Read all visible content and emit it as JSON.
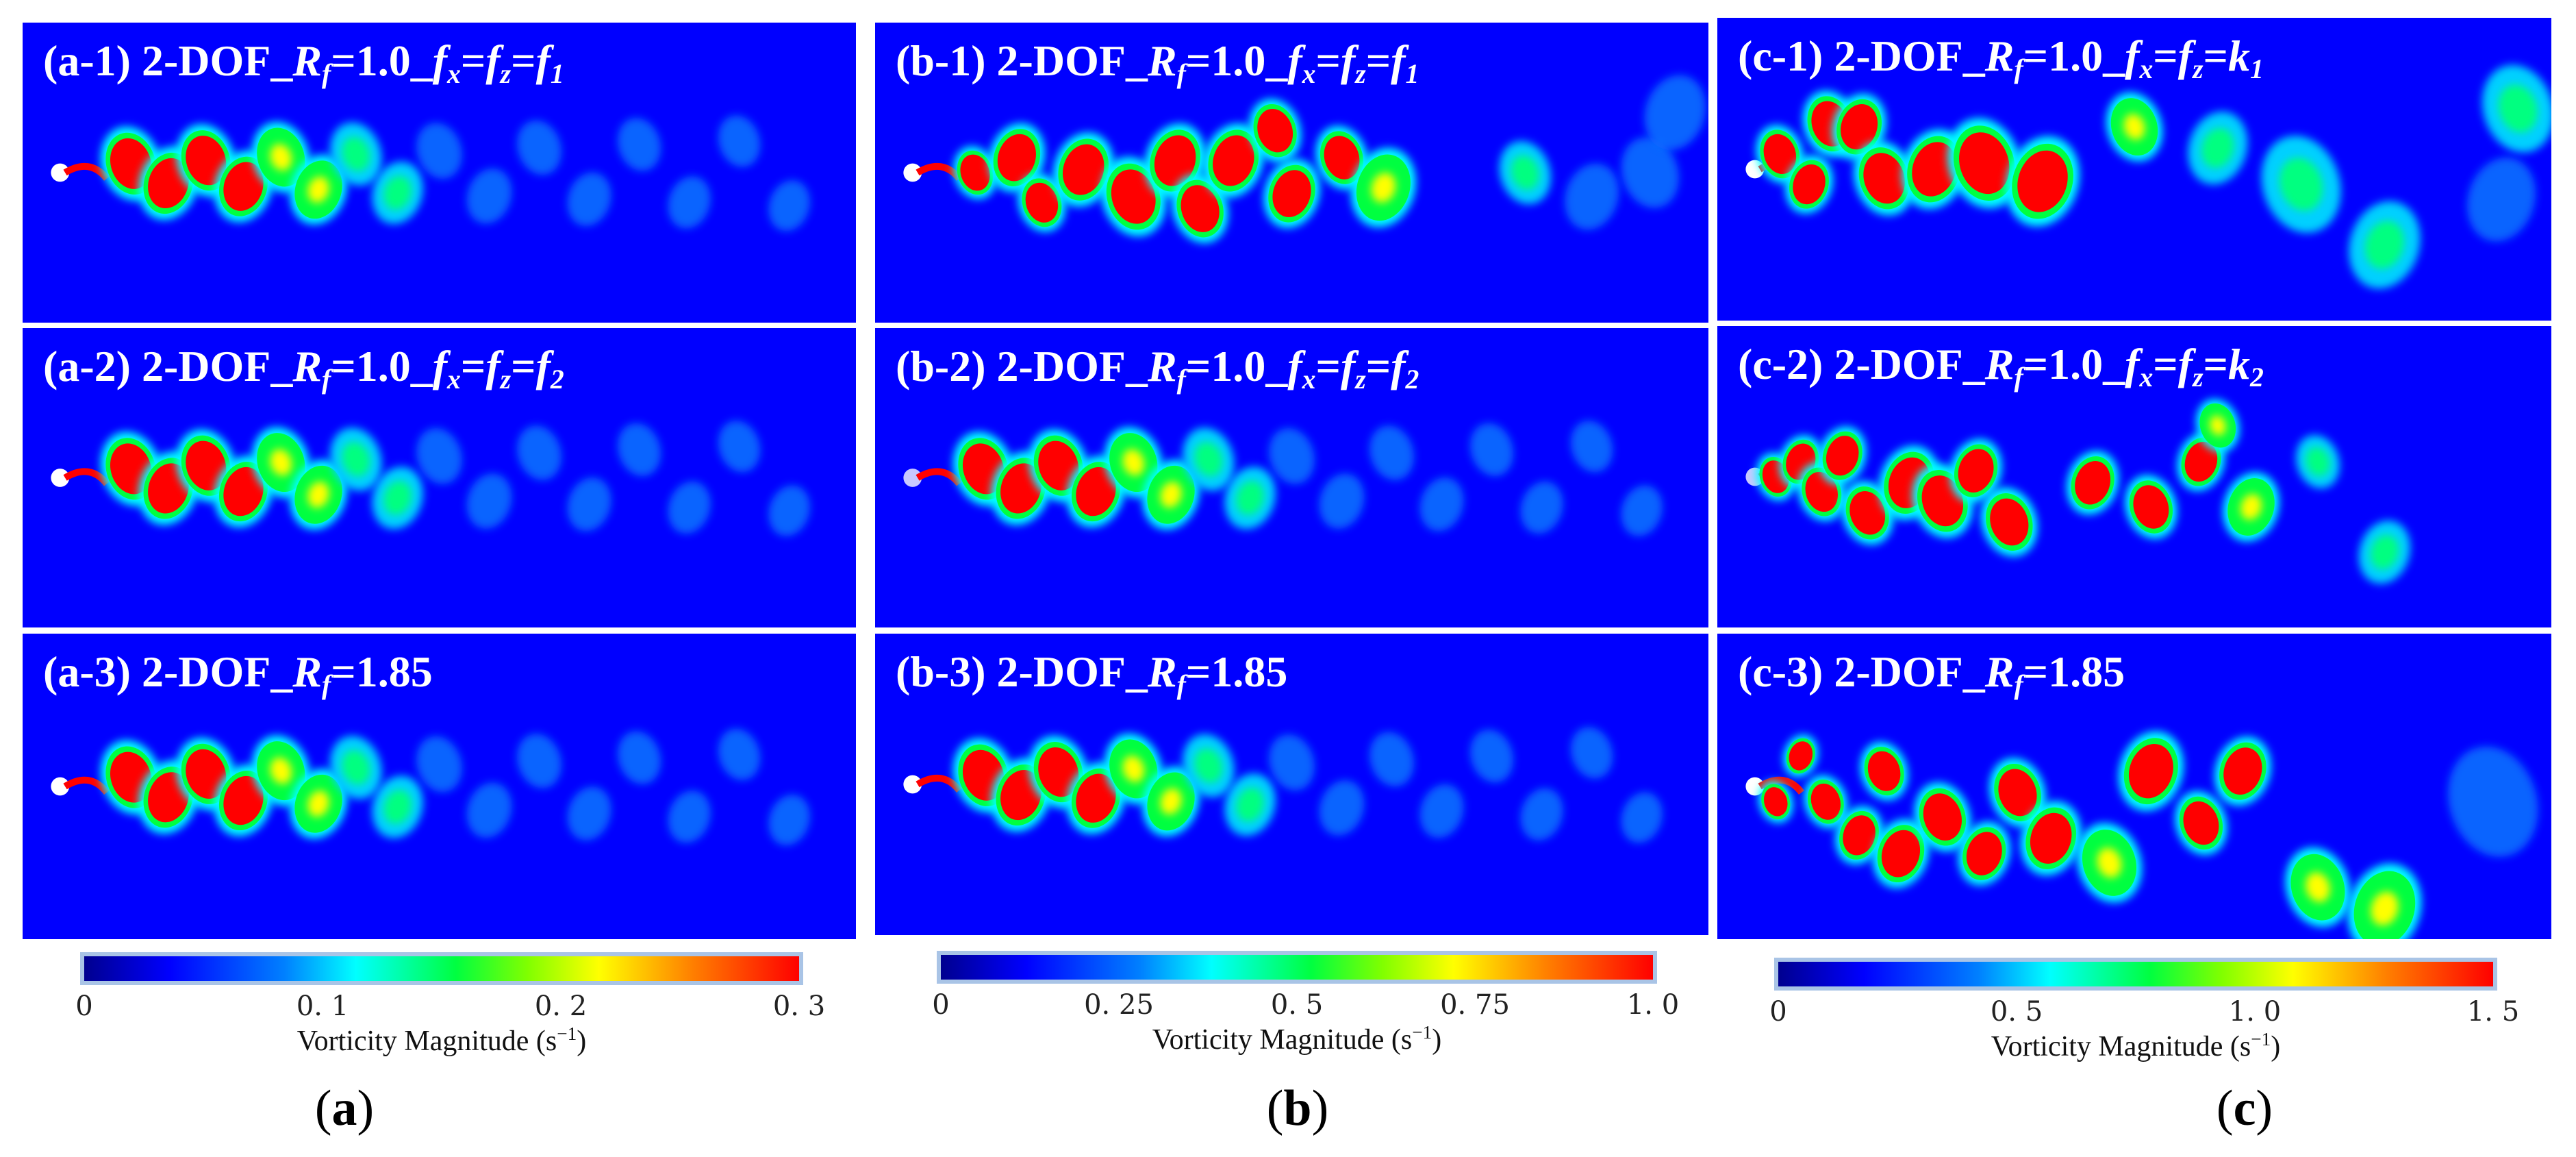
{
  "panels": [
    {
      "id": "a-1",
      "name": "panel-a-1",
      "tag": "(a-1)",
      "label": "2-DOF_",
      "var": "R",
      "varsub": "f",
      "value": "=1.0_",
      "fx": "f",
      "fxsub": "x",
      "eq": "=",
      "fz": "f",
      "fzsub": "z",
      "eq2": "=",
      "ff": "f",
      "ffsub": "1",
      "pattern": "2S-regular",
      "scale": 1,
      "cyl": "#ffffff"
    },
    {
      "id": "b-1",
      "name": "panel-b-1",
      "tag": "(b-1)",
      "label": "2-DOF_",
      "var": "R",
      "varsub": "f",
      "value": "=1.0_",
      "fx": "f",
      "fxsub": "x",
      "eq": "=",
      "fz": "f",
      "fzsub": "z",
      "eq2": "=",
      "ff": "f",
      "ffsub": "1",
      "pattern": "chaotic-medium",
      "scale": 1,
      "cyl": "#ffffff"
    },
    {
      "id": "c-1",
      "name": "panel-c-1",
      "tag": "(c-1)",
      "label": "2-DOF_",
      "var": "R",
      "varsub": "f",
      "value": "=1.0_",
      "fx": "f",
      "fxsub": "x",
      "eq": "=",
      "fz": "f",
      "fzsub": "z",
      "eq2": "=",
      "ff": "k",
      "ffsub": "1",
      "pattern": "large-sparse",
      "scale": 1,
      "cyl": "#ffffff"
    },
    {
      "id": "a-2",
      "name": "panel-a-2",
      "tag": "(a-2)",
      "label": "2-DOF_",
      "var": "R",
      "varsub": "f",
      "value": "=1.0_",
      "fx": "f",
      "fxsub": "x",
      "eq": "=",
      "fz": "f",
      "fzsub": "z",
      "eq2": "=",
      "ff": "f",
      "ffsub": "2",
      "pattern": "2S-regular",
      "scale": 1,
      "cyl": "#ffffff"
    },
    {
      "id": "b-2",
      "name": "panel-b-2",
      "tag": "(b-2)",
      "label": "2-DOF_",
      "var": "R",
      "varsub": "f",
      "value": "=1.0_",
      "fx": "f",
      "fxsub": "x",
      "eq": "=",
      "fz": "f",
      "fzsub": "z",
      "eq2": "=",
      "ff": "f",
      "ffsub": "2",
      "pattern": "2S-regular",
      "scale": 1,
      "cyl": "#c8c8ff"
    },
    {
      "id": "c-2",
      "name": "panel-c-2",
      "tag": "(c-2)",
      "label": "2-DOF_",
      "var": "R",
      "varsub": "f",
      "value": "=1.0_",
      "fx": "f",
      "fxsub": "x",
      "eq": "=",
      "fz": "f",
      "fzsub": "z",
      "eq2": "=",
      "ff": "k",
      "ffsub": "2",
      "pattern": "medium-scatter",
      "scale": 1,
      "cyl": "#c8c8ff"
    },
    {
      "id": "a-3",
      "name": "panel-a-3",
      "tag": "(a-3)",
      "label": "2-DOF_",
      "var": "R",
      "varsub": "f",
      "value": "=1.85",
      "pattern": "2S-regular",
      "scale": 1,
      "cyl": "#ffffff"
    },
    {
      "id": "b-3",
      "name": "panel-b-3",
      "tag": "(b-3)",
      "label": "2-DOF_",
      "var": "R",
      "varsub": "f",
      "value": "=1.85",
      "pattern": "2S-regular",
      "scale": 1,
      "cyl": "#ffffff"
    },
    {
      "id": "c-3",
      "name": "panel-c-3",
      "tag": "(c-3)",
      "label": "2-DOF_",
      "var": "R",
      "varsub": "f",
      "value": "=1.85",
      "pattern": "chaotic-large",
      "scale": 1,
      "cyl": "#ffffff"
    }
  ],
  "colorbars": [
    {
      "name": "colorbar-a",
      "ticks": [
        "0",
        "0. 1",
        "0. 2",
        "0. 3"
      ],
      "max": 0.3,
      "title": "Vorticity Magnitude (s",
      "title_sup": "−1",
      "title_end": ")"
    },
    {
      "name": "colorbar-b",
      "ticks": [
        "0",
        "0. 25",
        "0. 5",
        "0. 75",
        "1. 0"
      ],
      "max": 1.0,
      "title": "Vorticity Magnitude (s",
      "title_sup": "−1",
      "title_end": ")"
    },
    {
      "name": "colorbar-c",
      "ticks": [
        "0",
        "0. 5",
        "1. 0",
        "1. 5"
      ],
      "max": 1.5,
      "title": "Vorticity Magnitude (s",
      "title_sup": "−1",
      "title_end": ")"
    }
  ],
  "subfigure_labels": [
    "a",
    "b",
    "c"
  ],
  "colors": {
    "background": "#0000ff",
    "vortex_core": "#ff0000",
    "vortex_ring": "#00ff40",
    "vortex_halo": "#00ffff"
  }
}
